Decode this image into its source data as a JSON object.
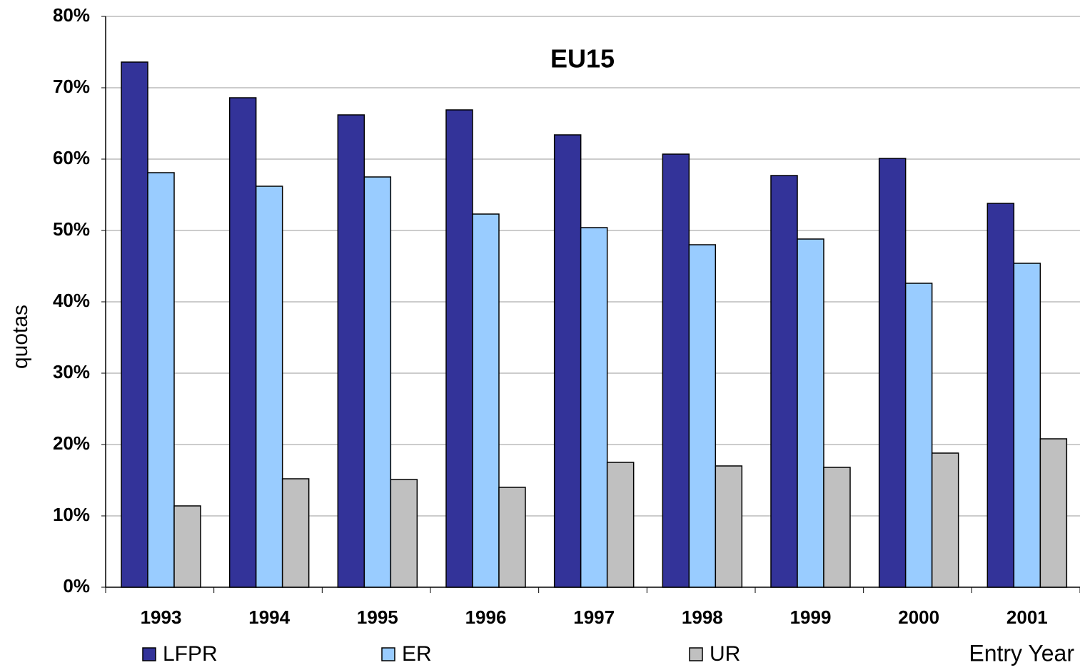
{
  "chart_data": {
    "type": "bar",
    "title": "EU15",
    "x_label": "Entry Year",
    "y_label": "quotas",
    "categories": [
      "1993",
      "1994",
      "1995",
      "1996",
      "1997",
      "1998",
      "1999",
      "2000",
      "2001"
    ],
    "series": [
      {
        "name": "LFPR",
        "color": "#333399",
        "values": [
          73.6,
          68.6,
          66.2,
          66.9,
          63.4,
          60.7,
          57.7,
          60.1,
          53.8
        ]
      },
      {
        "name": "ER",
        "color": "#99ccff",
        "values": [
          58.1,
          56.2,
          57.5,
          52.3,
          50.4,
          48.0,
          48.8,
          42.6,
          45.4
        ]
      },
      {
        "name": "UR",
        "color": "#c0c0c0",
        "values": [
          11.4,
          15.2,
          15.1,
          14.0,
          17.5,
          17.0,
          16.8,
          18.8,
          20.8
        ]
      }
    ],
    "ylim": [
      0,
      80
    ],
    "yticks": [
      {
        "value": 0,
        "label": "0%"
      },
      {
        "value": 10,
        "label": "10%"
      },
      {
        "value": 20,
        "label": "20%"
      },
      {
        "value": 30,
        "label": "30%"
      },
      {
        "value": 40,
        "label": "40%"
      },
      {
        "value": 50,
        "label": "50%"
      },
      {
        "value": 60,
        "label": "60%"
      },
      {
        "value": 70,
        "label": "70%"
      },
      {
        "value": 80,
        "label": "80%"
      }
    ],
    "grid": true,
    "legend": "bottom"
  }
}
